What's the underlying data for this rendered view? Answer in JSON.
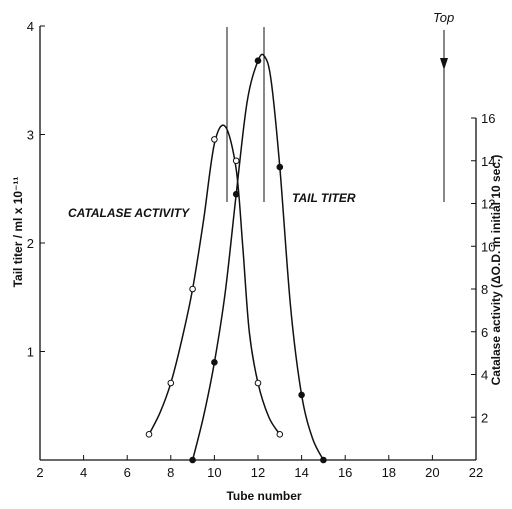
{
  "chart_data": {
    "type": "line",
    "xlabel": "Tube number",
    "ylabel_left": "Tail titer / ml x 10⁻¹¹",
    "ylabel_right": "Catalase activity (ΔO.D. in initial 10 sec.)",
    "x_ticks": [
      "2",
      "4",
      "6",
      "8",
      "10",
      "12",
      "14",
      "16",
      "18",
      "20",
      "22"
    ],
    "y_left_ticks": [
      "1",
      "2",
      "3",
      "4"
    ],
    "y_right_ticks": [
      "2",
      "4",
      "6",
      "8",
      "10",
      "12",
      "14",
      "16"
    ],
    "xlim": [
      2,
      22
    ],
    "ylim_left": [
      0,
      4
    ],
    "ylim_right": [
      0,
      16
    ],
    "series": [
      {
        "name": "CATALASE ACTIVITY",
        "axis": "right",
        "marker": "open-circle",
        "points": [
          [
            7,
            1.2
          ],
          [
            8,
            3.6
          ],
          [
            9,
            8.0
          ],
          [
            10,
            15.0
          ],
          [
            11,
            14.0
          ],
          [
            12,
            3.6
          ],
          [
            13,
            1.2
          ]
        ],
        "curve": [
          [
            7,
            1.2
          ],
          [
            7.5,
            2.2
          ],
          [
            8,
            3.6
          ],
          [
            8.5,
            5.6
          ],
          [
            9,
            8.0
          ],
          [
            9.5,
            11.2
          ],
          [
            10,
            14.8
          ],
          [
            10.5,
            15.6
          ],
          [
            11,
            13.6
          ],
          [
            11.3,
            10.0
          ],
          [
            11.6,
            6.0
          ],
          [
            12,
            3.6
          ],
          [
            12.5,
            2.0
          ],
          [
            13,
            1.2
          ]
        ]
      },
      {
        "name": "TAIL TITER",
        "axis": "left",
        "marker": "filled-circle",
        "points": [
          [
            9,
            0
          ],
          [
            10,
            0.9
          ],
          [
            11,
            2.45
          ],
          [
            12,
            3.68
          ],
          [
            13,
            2.7
          ],
          [
            14,
            0.6
          ],
          [
            15,
            0
          ]
        ],
        "curve": [
          [
            9,
            0
          ],
          [
            9.5,
            0.4
          ],
          [
            10,
            0.9
          ],
          [
            10.5,
            1.55
          ],
          [
            11,
            2.45
          ],
          [
            11.5,
            3.3
          ],
          [
            12,
            3.68
          ],
          [
            12.3,
            3.72
          ],
          [
            12.6,
            3.5
          ],
          [
            13,
            2.7
          ],
          [
            13.5,
            1.4
          ],
          [
            14,
            0.6
          ],
          [
            14.5,
            0.2
          ],
          [
            15,
            0
          ]
        ]
      }
    ],
    "annotations": [
      {
        "text": "CATALASE ACTIVITY"
      },
      {
        "text": "TAIL TITER"
      },
      {
        "text": "Top"
      }
    ]
  }
}
